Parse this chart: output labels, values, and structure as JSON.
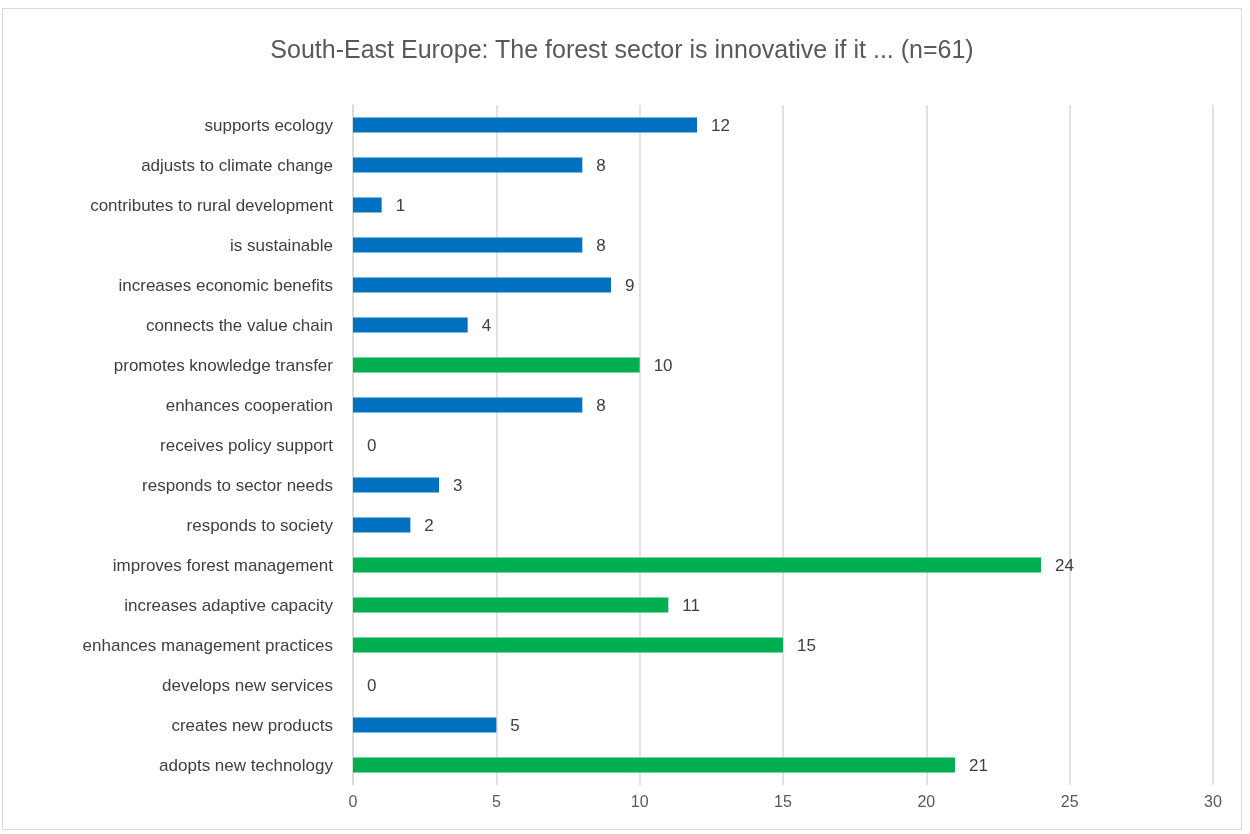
{
  "chart_data": {
    "type": "bar",
    "orientation": "horizontal",
    "title": "South-East Europe: The forest sector is innovative if it ... (n=61)",
    "categories": [
      "supports ecology",
      "adjusts to climate change",
      "contributes to rural development",
      "is sustainable",
      "increases economic benefits",
      "connects the value chain",
      "promotes knowledge transfer",
      "enhances cooperation",
      "receives policy support",
      "responds to sector needs",
      "responds to society",
      "improves forest management",
      "increases adaptive capacity",
      "enhances management practices",
      "develops new services",
      "creates new products",
      "adopts new technology"
    ],
    "values": [
      12,
      8,
      1,
      8,
      9,
      4,
      10,
      8,
      0,
      3,
      2,
      24,
      11,
      15,
      0,
      5,
      21
    ],
    "colors": [
      "#0070c0",
      "#0070c0",
      "#0070c0",
      "#0070c0",
      "#0070c0",
      "#0070c0",
      "#00b050",
      "#0070c0",
      "#0070c0",
      "#0070c0",
      "#0070c0",
      "#00b050",
      "#00b050",
      "#00b050",
      "#0070c0",
      "#0070c0",
      "#00b050"
    ],
    "xlim": [
      0,
      30
    ],
    "xticks": [
      0,
      5,
      10,
      15,
      20,
      25,
      30
    ],
    "grid": "x",
    "data_labels": true
  }
}
